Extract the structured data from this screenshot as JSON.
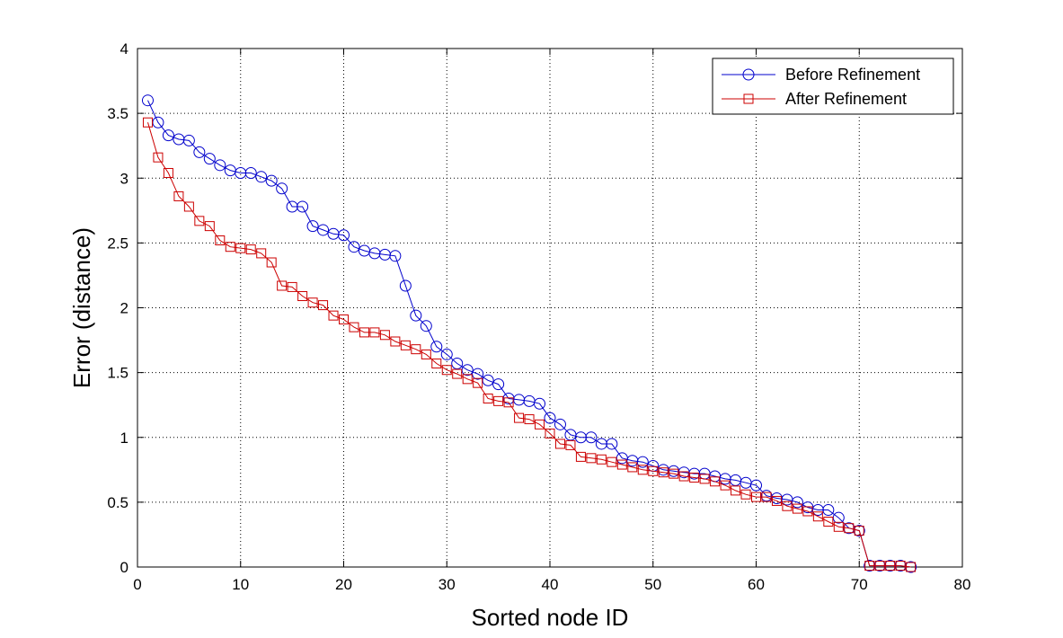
{
  "chart_data": {
    "type": "line",
    "xlabel": "Sorted node ID",
    "ylabel": "Error (distance)",
    "xlim": [
      0,
      80
    ],
    "ylim": [
      0,
      4
    ],
    "xticks": [
      "0",
      "10",
      "20",
      "30",
      "40",
      "50",
      "60",
      "70",
      "80"
    ],
    "yticks": [
      "0",
      "0.5",
      "1",
      "1.5",
      "2",
      "2.5",
      "3",
      "3.5",
      "4"
    ],
    "grid": true,
    "legend_position": "top-right",
    "series": [
      {
        "name": "Before Refinement",
        "color": "#0000cc",
        "marker": "circle",
        "x": [
          1,
          2,
          3,
          4,
          5,
          6,
          7,
          8,
          9,
          10,
          11,
          12,
          13,
          14,
          15,
          16,
          17,
          18,
          19,
          20,
          21,
          22,
          23,
          24,
          25,
          26,
          27,
          28,
          29,
          30,
          31,
          32,
          33,
          34,
          35,
          36,
          37,
          38,
          39,
          40,
          41,
          42,
          43,
          44,
          45,
          46,
          47,
          48,
          49,
          50,
          51,
          52,
          53,
          54,
          55,
          56,
          57,
          58,
          59,
          60,
          61,
          62,
          63,
          64,
          65,
          66,
          67,
          68,
          69,
          70,
          71,
          72,
          73,
          74,
          75
        ],
        "values": [
          3.6,
          3.43,
          3.33,
          3.3,
          3.29,
          3.2,
          3.15,
          3.1,
          3.06,
          3.04,
          3.04,
          3.01,
          2.98,
          2.92,
          2.78,
          2.78,
          2.63,
          2.6,
          2.57,
          2.56,
          2.47,
          2.44,
          2.42,
          2.41,
          2.4,
          2.17,
          1.94,
          1.86,
          1.7,
          1.64,
          1.57,
          1.52,
          1.49,
          1.44,
          1.41,
          1.3,
          1.29,
          1.28,
          1.26,
          1.15,
          1.1,
          1.02,
          1.0,
          1.0,
          0.95,
          0.95,
          0.84,
          0.82,
          0.81,
          0.78,
          0.75,
          0.74,
          0.73,
          0.72,
          0.72,
          0.7,
          0.68,
          0.67,
          0.65,
          0.63,
          0.55,
          0.53,
          0.52,
          0.5,
          0.46,
          0.44,
          0.44,
          0.38,
          0.3,
          0.28,
          0.01,
          0.01,
          0.01,
          0.01,
          0.0
        ]
      },
      {
        "name": "After Refinement",
        "color": "#cc0000",
        "marker": "square",
        "x": [
          1,
          2,
          3,
          4,
          5,
          6,
          7,
          8,
          9,
          10,
          11,
          12,
          13,
          14,
          15,
          16,
          17,
          18,
          19,
          20,
          21,
          22,
          23,
          24,
          25,
          26,
          27,
          28,
          29,
          30,
          31,
          32,
          33,
          34,
          35,
          36,
          37,
          38,
          39,
          40,
          41,
          42,
          43,
          44,
          45,
          46,
          47,
          48,
          49,
          50,
          51,
          52,
          53,
          54,
          55,
          56,
          57,
          58,
          59,
          60,
          61,
          62,
          63,
          64,
          65,
          66,
          67,
          68,
          69,
          70,
          71,
          72,
          73,
          74,
          75
        ],
        "values": [
          3.43,
          3.16,
          3.04,
          2.86,
          2.78,
          2.67,
          2.63,
          2.52,
          2.47,
          2.46,
          2.45,
          2.42,
          2.35,
          2.17,
          2.16,
          2.09,
          2.04,
          2.02,
          1.94,
          1.91,
          1.85,
          1.81,
          1.81,
          1.79,
          1.74,
          1.71,
          1.68,
          1.64,
          1.57,
          1.52,
          1.49,
          1.45,
          1.42,
          1.3,
          1.28,
          1.27,
          1.15,
          1.14,
          1.1,
          1.03,
          0.95,
          0.94,
          0.85,
          0.84,
          0.83,
          0.81,
          0.79,
          0.77,
          0.75,
          0.74,
          0.73,
          0.72,
          0.7,
          0.69,
          0.68,
          0.66,
          0.63,
          0.59,
          0.56,
          0.54,
          0.54,
          0.51,
          0.47,
          0.45,
          0.43,
          0.39,
          0.35,
          0.31,
          0.3,
          0.28,
          0.01,
          0.01,
          0.01,
          0.01,
          0.0
        ]
      }
    ]
  }
}
